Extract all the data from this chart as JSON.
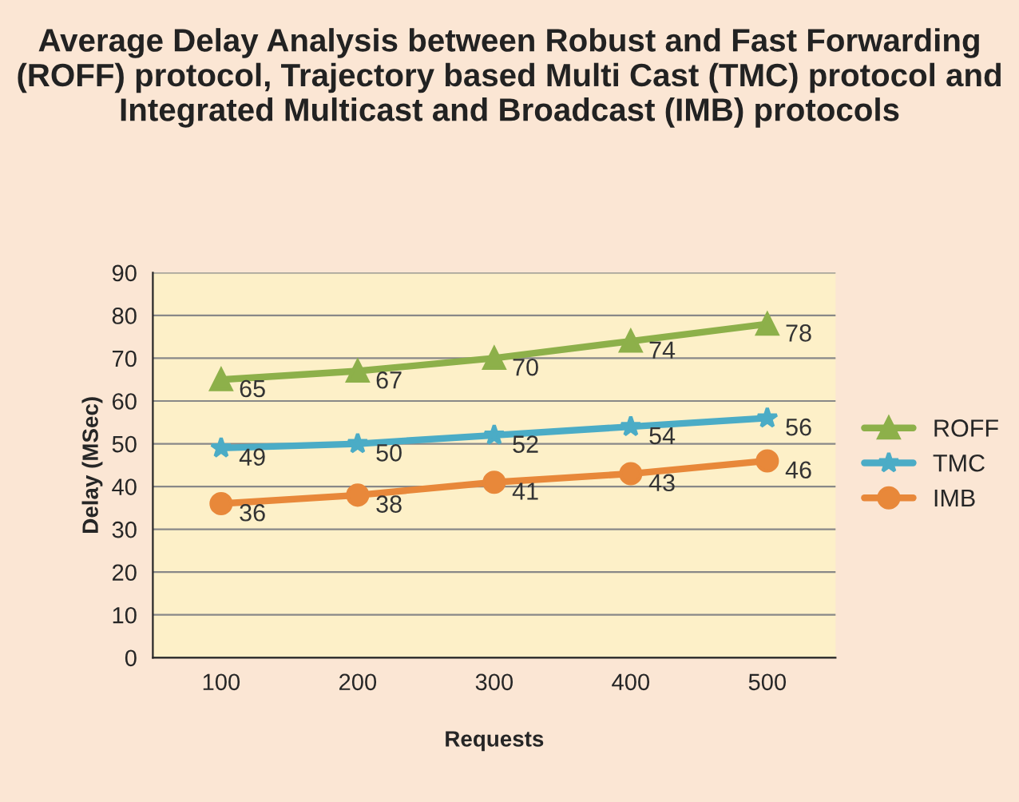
{
  "chart_data": {
    "type": "line",
    "title": "Average Delay Analysis between Robust and Fast Forwarding (ROFF) protocol, Trajectory based Multi Cast (TMC) protocol and Integrated Multicast and Broadcast (IMB) protocols",
    "xlabel": "Requests",
    "ylabel": "Delay (MSec)",
    "categories": [
      "100",
      "200",
      "300",
      "400",
      "500"
    ],
    "series": [
      {
        "name": "ROFF",
        "color": "#8db04a",
        "marker": "triangle",
        "values": [
          65,
          67,
          70,
          74,
          78
        ]
      },
      {
        "name": "TMC",
        "color": "#4bacc6",
        "marker": "star",
        "values": [
          49,
          50,
          52,
          54,
          56
        ]
      },
      {
        "name": "IMB",
        "color": "#e8883a",
        "marker": "circle",
        "values": [
          36,
          38,
          41,
          43,
          46
        ]
      }
    ],
    "ylim": [
      0,
      90
    ],
    "yticks": [
      0,
      10,
      20,
      30,
      40,
      50,
      60,
      70,
      80,
      90
    ],
    "grid": "y",
    "legend": "right",
    "data_labels": true
  }
}
